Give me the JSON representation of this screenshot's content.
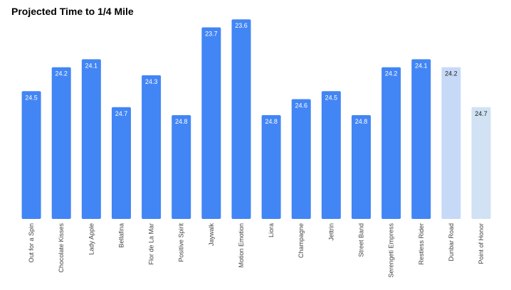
{
  "chart_data": {
    "type": "bar",
    "title": "Projected Time to 1/4 Mile",
    "categories": [
      "Out for a Spin",
      "Chocolate Kisses",
      "Lady Apple",
      "Bellafina",
      "Flor de La Mar",
      "Positive Spirit",
      "Jaywalk",
      "Motion Emotion",
      "Liora",
      "Champagne",
      "Jettrin",
      "Street Band",
      "Serengeti Empress",
      "Restless Rider",
      "Dunbar Road",
      "Point of Honor"
    ],
    "values": [
      24.5,
      24.2,
      24.1,
      24.7,
      24.3,
      24.8,
      23.7,
      23.6,
      24.8,
      24.6,
      24.5,
      24.8,
      24.2,
      24.1,
      24.2,
      24.7
    ],
    "colors": [
      "#4285f4",
      "#4285f4",
      "#4285f4",
      "#4285f4",
      "#4285f4",
      "#4285f4",
      "#4285f4",
      "#4285f4",
      "#4285f4",
      "#4285f4",
      "#4285f4",
      "#4285f4",
      "#4285f4",
      "#4285f4",
      "#c6d9f7",
      "#d0e2f3"
    ],
    "ylim": [
      26.1,
      23.5
    ]
  }
}
